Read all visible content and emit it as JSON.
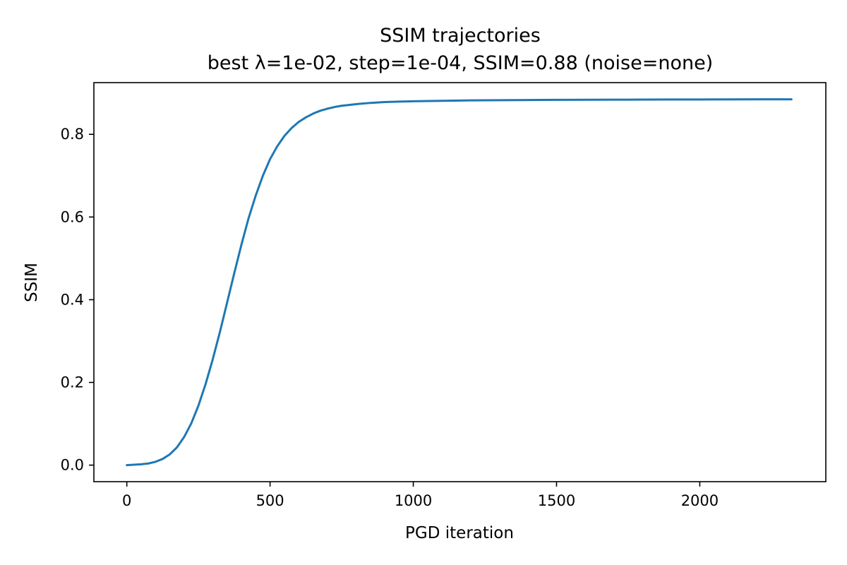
{
  "chart_data": {
    "type": "line",
    "title": "SSIM trajectories",
    "subtitle": "best λ=1e-02, step=1e-04, SSIM=0.88 (noise=none)",
    "xlabel": "PGD iteration",
    "ylabel": "SSIM",
    "xlim": [
      -115,
      2440
    ],
    "ylim": [
      -0.04,
      0.925
    ],
    "xticks": [
      0,
      500,
      1000,
      1500,
      2000
    ],
    "yticks": [
      0.0,
      0.2,
      0.4,
      0.6,
      0.8
    ],
    "grid": false,
    "line_color": "#1f77b4",
    "series": [
      {
        "x": [
          0,
          25,
          50,
          75,
          100,
          125,
          150,
          175,
          200,
          225,
          250,
          275,
          300,
          325,
          350,
          375,
          400,
          425,
          450,
          475,
          500,
          525,
          550,
          575,
          600,
          625,
          650,
          675,
          700,
          725,
          750,
          775,
          800,
          850,
          900,
          950,
          1000,
          1100,
          1200,
          1300,
          1400,
          1500,
          1600,
          1700,
          1800,
          1900,
          2000,
          2100,
          2200,
          2320
        ],
        "y": [
          0.0,
          0.001,
          0.002,
          0.004,
          0.008,
          0.015,
          0.026,
          0.043,
          0.068,
          0.101,
          0.144,
          0.196,
          0.256,
          0.322,
          0.393,
          0.464,
          0.533,
          0.597,
          0.652,
          0.7,
          0.74,
          0.771,
          0.796,
          0.815,
          0.83,
          0.841,
          0.85,
          0.857,
          0.862,
          0.866,
          0.869,
          0.871,
          0.873,
          0.876,
          0.878,
          0.879,
          0.88,
          0.881,
          0.882,
          0.8825,
          0.883,
          0.8833,
          0.8836,
          0.8838,
          0.884,
          0.8842,
          0.8843,
          0.8845,
          0.8846,
          0.8847
        ]
      }
    ]
  }
}
